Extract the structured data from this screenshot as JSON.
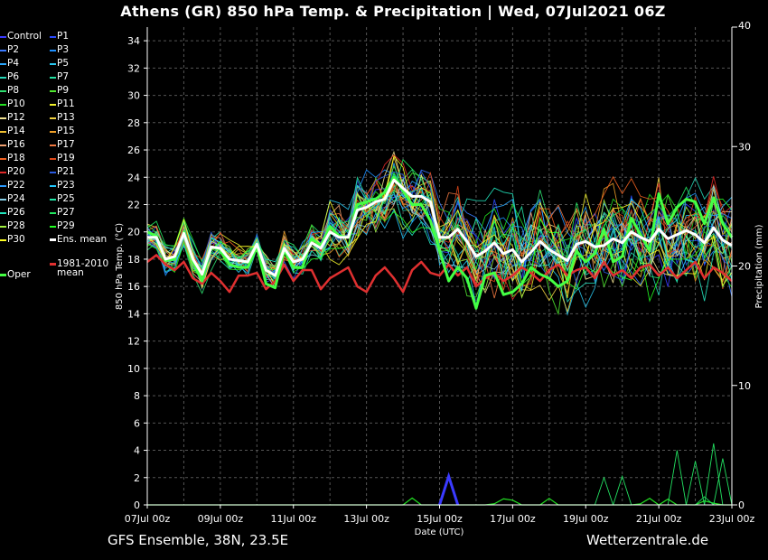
{
  "header": {
    "title": "Athens  (GR)  850 hPa Temp. & Precipitation | Wed, 07Jul2021 06Z"
  },
  "footer": {
    "left": "GFS Ensemble, 38N, 23.5E",
    "right": "Wetterzentrale.de"
  },
  "chart_data": {
    "type": "line",
    "xlabel": "Date (UTC)",
    "ylabel": "850 hPa Temp. (°C)",
    "y2label": "Precipitation (mm)",
    "ylim": [
      0,
      35
    ],
    "y2lim": [
      0,
      40
    ],
    "yticks": [
      "0",
      "2",
      "4",
      "6",
      "8",
      "10",
      "12",
      "14",
      "16",
      "18",
      "20",
      "22",
      "24",
      "26",
      "28",
      "30",
      "32",
      "34"
    ],
    "y2ticks": [
      "0",
      "10",
      "20",
      "30",
      "40"
    ],
    "xticks": [
      "07Jul 00z",
      "09Jul 00z",
      "11Jul 00z",
      "13Jul 00z",
      "15Jul 00z",
      "17Jul 00z",
      "19Jul 00z",
      "21Jul 00z",
      "23Jul 00z"
    ],
    "xlim_hours": [
      0,
      384
    ],
    "grid": true,
    "legend_position": "left",
    "legend": [
      {
        "name": "Control",
        "color": "#3a3aff"
      },
      {
        "name": "P1",
        "color": "#2a4aff"
      },
      {
        "name": "P2",
        "color": "#3a7aff"
      },
      {
        "name": "P3",
        "color": "#1e90ff"
      },
      {
        "name": "P4",
        "color": "#2aa8ff"
      },
      {
        "name": "P5",
        "color": "#29c8f0"
      },
      {
        "name": "P6",
        "color": "#26d8b8"
      },
      {
        "name": "P7",
        "color": "#22e0a0"
      },
      {
        "name": "P8",
        "color": "#2ee070"
      },
      {
        "name": "P9",
        "color": "#50e830"
      },
      {
        "name": "P10",
        "color": "#22e022"
      },
      {
        "name": "P11",
        "color": "#f0f02a"
      },
      {
        "name": "P12",
        "color": "#f0e090"
      },
      {
        "name": "P13",
        "color": "#f0d040"
      },
      {
        "name": "P14",
        "color": "#f0c030"
      },
      {
        "name": "P15",
        "color": "#f0a028"
      },
      {
        "name": "P16",
        "color": "#f0a070"
      },
      {
        "name": "P17",
        "color": "#f07840"
      },
      {
        "name": "P18",
        "color": "#f06020"
      },
      {
        "name": "P19",
        "color": "#e04818"
      },
      {
        "name": "P20",
        "color": "#e02828"
      },
      {
        "name": "P21",
        "color": "#2a5ae0"
      },
      {
        "name": "P22",
        "color": "#2a9aff"
      },
      {
        "name": "P23",
        "color": "#22c8ff"
      },
      {
        "name": "P24",
        "color": "#88d0e8"
      },
      {
        "name": "P25",
        "color": "#22e8a8"
      },
      {
        "name": "P26",
        "color": "#22e8c0"
      },
      {
        "name": "P27",
        "color": "#22e860"
      },
      {
        "name": "P28",
        "color": "#a0f040"
      },
      {
        "name": "P29",
        "color": "#22ff22"
      },
      {
        "name": "P30",
        "color": "#ffff22"
      },
      {
        "name": "Ens. mean",
        "color": "#ffffff"
      },
      {
        "name": "Oper",
        "color": "#44ff44"
      },
      {
        "name": "1981-2010 mean",
        "color": "#e03030"
      }
    ],
    "ens_mean": {
      "hours": [
        0,
        6,
        12,
        18,
        24,
        30,
        36,
        42,
        48,
        54,
        60,
        66,
        72,
        78,
        84,
        90,
        96,
        102,
        108,
        114,
        120,
        126,
        132,
        138,
        144,
        150,
        156,
        162,
        168,
        174,
        180,
        186,
        192,
        198,
        204,
        210,
        216,
        222,
        228,
        234,
        240,
        246,
        252,
        258,
        264,
        270,
        276,
        282,
        288,
        294,
        300,
        306,
        312,
        318,
        324,
        330,
        336,
        342,
        348,
        354,
        360,
        366,
        372,
        378,
        384
      ],
      "values": [
        19.6,
        19.6,
        18.0,
        18.2,
        19.9,
        18.0,
        16.9,
        18.9,
        18.8,
        18.0,
        17.9,
        17.8,
        19.1,
        17.2,
        16.8,
        18.8,
        17.8,
        18.0,
        19.2,
        18.8,
        20.0,
        19.6,
        19.6,
        21.6,
        21.8,
        22.2,
        22.4,
        23.8,
        23.2,
        22.6,
        22.6,
        22.2,
        19.6,
        19.6,
        20.2,
        19.3,
        18.2,
        18.6,
        19.2,
        18.4,
        18.7,
        17.8,
        18.5,
        19.3,
        18.7,
        18.3,
        17.9,
        19.1,
        19.3,
        18.9,
        19.0,
        19.5,
        19.2,
        20.0,
        19.6,
        19.3,
        20.2,
        19.5,
        19.8,
        20.1,
        19.8,
        19.2,
        20.3,
        19.4,
        19.0
      ]
    },
    "oper": {
      "hours": [
        0,
        6,
        12,
        18,
        24,
        30,
        36,
        42,
        48,
        54,
        60,
        66,
        72,
        78,
        84,
        90,
        96,
        102,
        108,
        114,
        120,
        126,
        132,
        138,
        144,
        150,
        156,
        162,
        168,
        174,
        180,
        186,
        192,
        198,
        204,
        210,
        216,
        222,
        228,
        234,
        240,
        246,
        252,
        258,
        264,
        270,
        276,
        282,
        288,
        294,
        300,
        306,
        312,
        318,
        324,
        330,
        336,
        342,
        348,
        354,
        360,
        366,
        372,
        378,
        384
      ],
      "values": [
        20.0,
        19.7,
        17.9,
        18.0,
        20.0,
        17.8,
        16.4,
        18.9,
        18.7,
        17.6,
        17.4,
        17.4,
        18.9,
        16.2,
        15.9,
        18.7,
        17.4,
        17.4,
        19.5,
        19.0,
        20.4,
        19.7,
        19.6,
        22.0,
        22.2,
        22.4,
        22.9,
        24.0,
        23.0,
        22.0,
        22.0,
        20.8,
        18.6,
        16.4,
        17.4,
        16.6,
        14.4,
        16.8,
        17.0,
        15.4,
        15.6,
        16.2,
        17.4,
        16.9,
        16.6,
        16.0,
        16.4,
        18.6,
        17.8,
        18.4,
        20.2,
        17.8,
        18.2,
        21.0,
        19.8,
        18.6,
        22.8,
        20.6,
        21.8,
        22.4,
        22.2,
        20.6,
        22.5,
        20.6,
        19.6
      ]
    },
    "climate_mean": {
      "hours": [
        0,
        6,
        12,
        18,
        24,
        30,
        36,
        42,
        48,
        54,
        60,
        66,
        72,
        78,
        84,
        90,
        96,
        102,
        108,
        114,
        120,
        126,
        132,
        138,
        144,
        150,
        156,
        162,
        168,
        174,
        180,
        186,
        192,
        198,
        204,
        210,
        216,
        222,
        228,
        234,
        240,
        246,
        252,
        258,
        264,
        270,
        276,
        282,
        288,
        294,
        300,
        306,
        312,
        318,
        324,
        330,
        336,
        342,
        348,
        354,
        360,
        366,
        372,
        378,
        384
      ],
      "values": [
        17.8,
        18.3,
        17.6,
        17.2,
        17.8,
        16.6,
        16.2,
        17.0,
        16.4,
        15.6,
        16.8,
        16.8,
        17.0,
        15.8,
        16.4,
        17.6,
        16.4,
        17.2,
        17.2,
        15.8,
        16.6,
        17.0,
        17.4,
        16.0,
        15.6,
        16.8,
        17.4,
        16.6,
        15.6,
        17.2,
        17.8,
        17.0,
        16.8,
        17.6,
        16.8,
        17.4,
        16.0,
        16.6,
        17.0,
        16.4,
        16.8,
        17.4,
        17.0,
        16.4,
        17.2,
        17.6,
        16.8,
        17.2,
        17.4,
        16.6,
        17.8,
        16.8,
        17.2,
        16.6,
        17.4,
        17.6,
        16.8,
        17.4,
        16.6,
        17.2,
        17.8,
        16.6,
        17.4,
        17.0,
        16.4
      ]
    },
    "precip_peak": {
      "hour": 198,
      "value": 2.1,
      "series": "Control"
    }
  }
}
